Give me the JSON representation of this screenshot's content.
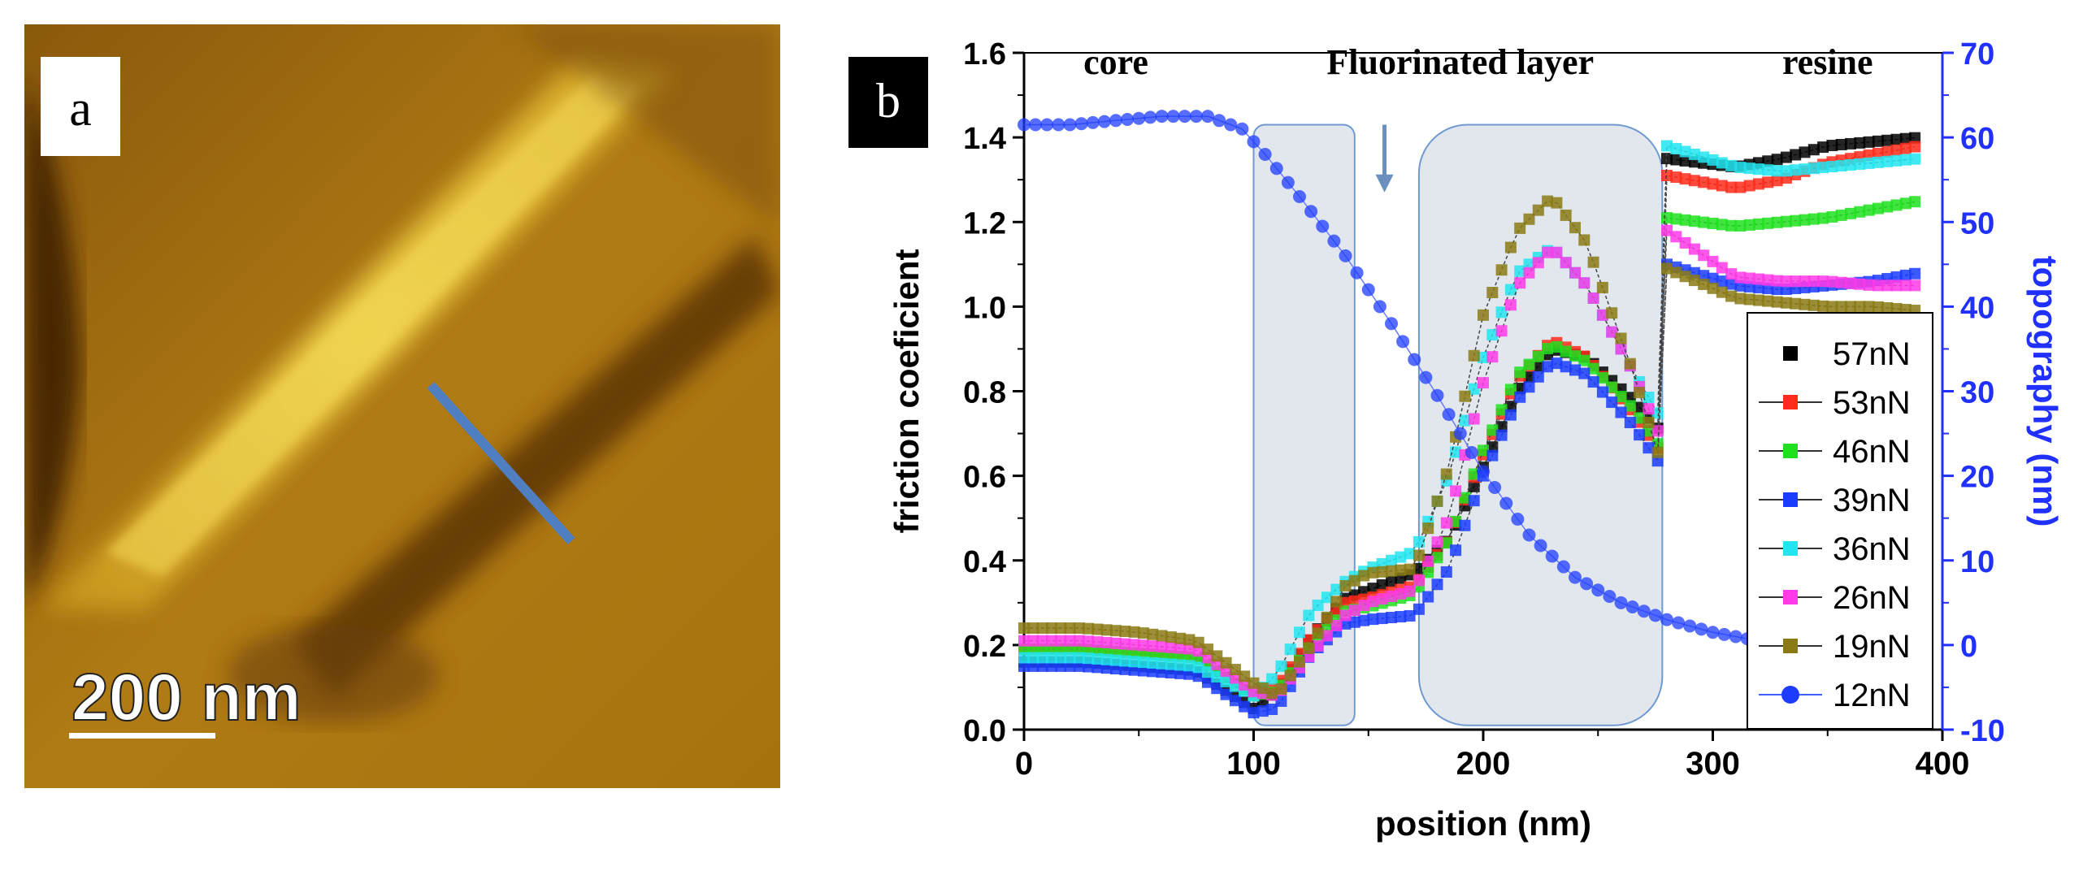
{
  "panel_a": {
    "label": "a",
    "scale_bar_text": "200 nm"
  },
  "colors": {
    "afm_dark": "#3a1e04",
    "afm_mid": "#a8700f",
    "afm_bright": "#e8c53a",
    "profile_line": "#4f7fc0",
    "shade": "#cfd7e2",
    "topography_blue": "#1e3cff"
  },
  "chart_data": {
    "type": "scatter",
    "panel_label": "b",
    "xlabel": "position (nm)",
    "ylabel": "friction coeficient",
    "y2label": "topography (nm)",
    "xlim": [
      0,
      400
    ],
    "ylim": [
      0.0,
      1.6
    ],
    "y2lim": [
      -10,
      70
    ],
    "xticks": [
      0,
      100,
      200,
      300,
      400
    ],
    "yticks": [
      0.0,
      0.2,
      0.4,
      0.6,
      0.8,
      1.0,
      1.2,
      1.4,
      1.6
    ],
    "y2ticks": [
      -10,
      0,
      10,
      20,
      30,
      40,
      50,
      60,
      70
    ],
    "annotations": [
      {
        "text": "core",
        "x": 40,
        "y": 1.55
      },
      {
        "text": "Fluorinated layer",
        "x": 190,
        "y": 1.55
      },
      {
        "text": "resine",
        "x": 350,
        "y": 1.55
      }
    ],
    "shaded_regions": [
      {
        "x": [
          100,
          144
        ],
        "y": [
          0.01,
          1.43
        ]
      },
      {
        "x": [
          172,
          278
        ],
        "y": [
          0.01,
          1.43
        ]
      }
    ],
    "arrow": {
      "x": 157,
      "y_from": 1.43,
      "y_to": 1.27
    },
    "series": [
      {
        "name": "57nN",
        "color": "#000000",
        "marker": "square",
        "axis": "left",
        "x": [
          0,
          25,
          50,
          75,
          100,
          110,
          125,
          140,
          150,
          170,
          185,
          200,
          215,
          230,
          245,
          265,
          278,
          280,
          310,
          330,
          350,
          370,
          390
        ],
        "values": [
          0.16,
          0.16,
          0.15,
          0.14,
          0.05,
          0.09,
          0.22,
          0.31,
          0.33,
          0.37,
          0.45,
          0.62,
          0.8,
          0.9,
          0.88,
          0.78,
          0.7,
          1.35,
          1.33,
          1.35,
          1.38,
          1.39,
          1.4
        ]
      },
      {
        "name": "53nN",
        "color": "#ff2a1a",
        "marker": "square",
        "axis": "left",
        "x": [
          0,
          25,
          50,
          75,
          100,
          110,
          125,
          140,
          150,
          170,
          185,
          200,
          215,
          230,
          245,
          265,
          278,
          280,
          310,
          330,
          350,
          370,
          390
        ],
        "values": [
          0.19,
          0.19,
          0.18,
          0.17,
          0.08,
          0.1,
          0.22,
          0.3,
          0.31,
          0.34,
          0.45,
          0.65,
          0.83,
          0.92,
          0.88,
          0.75,
          0.65,
          1.31,
          1.28,
          1.3,
          1.34,
          1.36,
          1.38
        ]
      },
      {
        "name": "46nN",
        "color": "#1ee01e",
        "marker": "square",
        "axis": "left",
        "x": [
          0,
          25,
          50,
          75,
          100,
          110,
          125,
          140,
          150,
          170,
          185,
          200,
          215,
          230,
          245,
          265,
          278,
          280,
          310,
          330,
          350,
          370,
          390
        ],
        "values": [
          0.19,
          0.19,
          0.18,
          0.17,
          0.08,
          0.09,
          0.2,
          0.28,
          0.29,
          0.32,
          0.45,
          0.66,
          0.84,
          0.91,
          0.87,
          0.76,
          0.66,
          1.21,
          1.19,
          1.2,
          1.21,
          1.23,
          1.25
        ]
      },
      {
        "name": "39nN",
        "color": "#1a3cff",
        "marker": "square",
        "axis": "left",
        "x": [
          0,
          25,
          50,
          75,
          100,
          110,
          125,
          140,
          150,
          170,
          185,
          200,
          215,
          230,
          245,
          265,
          278,
          280,
          310,
          330,
          350,
          370,
          390
        ],
        "values": [
          0.15,
          0.15,
          0.14,
          0.13,
          0.04,
          0.05,
          0.18,
          0.25,
          0.26,
          0.27,
          0.38,
          0.6,
          0.78,
          0.87,
          0.84,
          0.72,
          0.62,
          1.1,
          1.05,
          1.04,
          1.05,
          1.06,
          1.08
        ]
      },
      {
        "name": "36nN",
        "color": "#22e5f0",
        "marker": "square",
        "axis": "left",
        "x": [
          0,
          25,
          50,
          75,
          100,
          110,
          125,
          140,
          150,
          170,
          185,
          200,
          215,
          230,
          245,
          265,
          278,
          280,
          310,
          330,
          350,
          370,
          390
        ],
        "values": [
          0.17,
          0.17,
          0.16,
          0.15,
          0.08,
          0.13,
          0.28,
          0.35,
          0.38,
          0.42,
          0.6,
          0.88,
          1.08,
          1.14,
          1.05,
          0.85,
          0.73,
          1.38,
          1.33,
          1.32,
          1.33,
          1.34,
          1.35
        ]
      },
      {
        "name": "26nN",
        "color": "#ff3ae8",
        "marker": "square",
        "axis": "left",
        "x": [
          0,
          25,
          50,
          75,
          100,
          110,
          125,
          140,
          150,
          170,
          185,
          200,
          215,
          230,
          245,
          265,
          278,
          280,
          310,
          330,
          350,
          370,
          390
        ],
        "values": [
          0.21,
          0.21,
          0.2,
          0.19,
          0.09,
          0.08,
          0.18,
          0.27,
          0.3,
          0.33,
          0.5,
          0.82,
          1.05,
          1.14,
          1.05,
          0.85,
          0.68,
          1.18,
          1.07,
          1.06,
          1.06,
          1.05,
          1.05
        ]
      },
      {
        "name": "19nN",
        "color": "#8a7a14",
        "marker": "square",
        "axis": "left",
        "x": [
          0,
          25,
          50,
          75,
          100,
          110,
          125,
          140,
          150,
          170,
          185,
          200,
          215,
          230,
          245,
          265,
          278,
          280,
          310,
          330,
          350,
          370,
          390
        ],
        "values": [
          0.24,
          0.24,
          0.23,
          0.21,
          0.11,
          0.08,
          0.2,
          0.34,
          0.37,
          0.38,
          0.62,
          0.98,
          1.18,
          1.26,
          1.15,
          0.85,
          0.62,
          1.09,
          1.02,
          1.01,
          1.0,
          1.0,
          0.99
        ]
      },
      {
        "name": "12nN",
        "color": "#1e3cff",
        "marker": "circle",
        "axis": "right",
        "x": [
          0,
          20,
          40,
          60,
          80,
          95,
          105,
          120,
          140,
          160,
          180,
          200,
          220,
          240,
          260,
          280,
          300,
          320
        ],
        "values": [
          61.5,
          61.5,
          62.0,
          62.5,
          62.5,
          61.0,
          58.0,
          53.0,
          46.0,
          38.0,
          29.5,
          20.5,
          13.0,
          8.0,
          5.0,
          3.0,
          1.5,
          0.5
        ]
      }
    ]
  }
}
